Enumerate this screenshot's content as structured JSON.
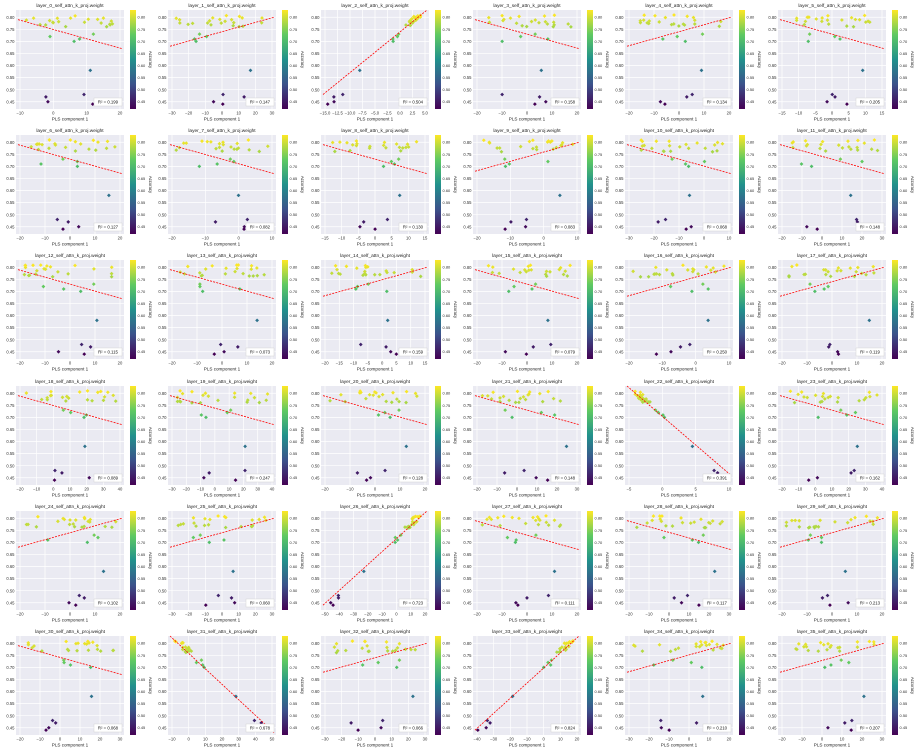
{
  "figure": {
    "xlabel": "PLS component 1",
    "colorbar_label": "Accuracy",
    "colorbar_ticks": [
      "0.80",
      "0.75",
      "0.70",
      "0.65",
      "0.60",
      "0.55",
      "0.50",
      "0.45"
    ],
    "colormap": [
      "#440154",
      "#3b528b",
      "#21918c",
      "#5ec962",
      "#fde725"
    ],
    "regression_color": "#ff0000",
    "panel_bg": "#eaeaf2",
    "grid_color": "#ffffff"
  },
  "chart_data": [
    {
      "type": "scatter",
      "title": "layer_0_self_attn_k_proj.weight",
      "r2": "R² = 0.199",
      "slope": -1,
      "xticks": [
        "−10",
        "0",
        "10",
        "20"
      ]
    },
    {
      "type": "scatter",
      "title": "layer_1_self_attn_k_proj.weight",
      "r2": "R² = 0.147",
      "slope": 1,
      "xticks": [
        "−30",
        "−20",
        "−10",
        "0",
        "10",
        "20",
        "30"
      ]
    },
    {
      "type": "scatter",
      "title": "layer_2_self_attn_k_proj.weight",
      "r2": "R² = 0.504",
      "slope": 2,
      "xticks": [
        "−15.0",
        "−12.5",
        "−10.0",
        "−7.5",
        "−5.0",
        "−2.5",
        "0.0",
        "2.5",
        "5.0"
      ]
    },
    {
      "type": "scatter",
      "title": "layer_3_self_attn_k_proj.weight",
      "r2": "R² = 0.158",
      "slope": -1,
      "xticks": [
        "−20",
        "−10",
        "0",
        "10",
        "20"
      ]
    },
    {
      "type": "scatter",
      "title": "layer_4_self_attn_k_proj.weight",
      "r2": "R² = 0.134",
      "slope": 1,
      "xticks": [
        "−20",
        "−10",
        "0",
        "10",
        "20"
      ]
    },
    {
      "type": "scatter",
      "title": "layer_5_self_attn_k_proj.weight",
      "r2": "R² = 0.205",
      "slope": -1,
      "xticks": [
        "−15",
        "−10",
        "−5",
        "0",
        "5",
        "10",
        "15"
      ]
    },
    {
      "type": "scatter",
      "title": "layer_6_self_attn_k_proj.weight",
      "r2": "R² = 0.127",
      "slope": -1,
      "xticks": [
        "−20",
        "−10",
        "0",
        "10",
        "20"
      ]
    },
    {
      "type": "scatter",
      "title": "layer_7_self_attn_k_proj.weight",
      "r2": "R² = 0.082",
      "slope": -1,
      "xticks": [
        "−20",
        "−10",
        "0",
        "10"
      ]
    },
    {
      "type": "scatter",
      "title": "layer_8_self_attn_k_proj.weight",
      "r2": "R² = 0.130",
      "slope": -1,
      "xticks": [
        "−15",
        "−10",
        "−5",
        "0",
        "5",
        "10",
        "15"
      ]
    },
    {
      "type": "scatter",
      "title": "layer_9_self_attn_k_proj.weight",
      "r2": "R² = 0.083",
      "slope": 1,
      "xticks": [
        "−20",
        "−10",
        "0",
        "10"
      ]
    },
    {
      "type": "scatter",
      "title": "layer_10_self_attn_k_proj.weight",
      "r2": "R² = 0.068",
      "slope": -1,
      "xticks": [
        "−30",
        "−20",
        "−10",
        "0",
        "10"
      ]
    },
    {
      "type": "scatter",
      "title": "layer_11_self_attn_k_proj.weight",
      "r2": "R² = 0.148",
      "slope": -1,
      "xticks": [
        "−20",
        "−10",
        "0",
        "10",
        "20",
        "30"
      ]
    },
    {
      "type": "scatter",
      "title": "layer_12_self_attn_k_proj.weight",
      "r2": "R² = 0.115",
      "slope": -1,
      "xticks": [
        "−20",
        "−10",
        "0",
        "10",
        "20"
      ]
    },
    {
      "type": "scatter",
      "title": "layer_13_self_attn_k_proj.weight",
      "r2": "R² = 0.073",
      "slope": -1,
      "xticks": [
        "−20",
        "−10",
        "0",
        "10",
        "20"
      ]
    },
    {
      "type": "scatter",
      "title": "layer_14_self_attn_k_proj.weight",
      "r2": "R² = 0.159",
      "slope": 1,
      "xticks": [
        "−20",
        "−15",
        "−10",
        "−5",
        "0",
        "5",
        "10",
        "15"
      ]
    },
    {
      "type": "scatter",
      "title": "layer_15_self_attn_k_proj.weight",
      "r2": "R² = 0.079",
      "slope": -1,
      "xticks": [
        "−20",
        "−10",
        "0",
        "10",
        "20"
      ]
    },
    {
      "type": "scatter",
      "title": "layer_16_self_attn_k_proj.weight",
      "r2": "R² = 0.250",
      "slope": 1,
      "xticks": [
        "−20",
        "−10",
        "0",
        "10"
      ]
    },
    {
      "type": "scatter",
      "title": "layer_17_self_attn_k_proj.weight",
      "r2": "R² = 0.119",
      "slope": 1,
      "xticks": [
        "−20",
        "−10",
        "0",
        "10",
        "20"
      ]
    },
    {
      "type": "scatter",
      "title": "layer_18_self_attn_k_proj.weight",
      "r2": "R² = 0.089",
      "slope": -1,
      "xticks": [
        "−20",
        "−10",
        "0",
        "10",
        "20",
        "30",
        "40"
      ]
    },
    {
      "type": "scatter",
      "title": "layer_19_self_attn_k_proj.weight",
      "r2": "R² = 0.247",
      "slope": -1,
      "xticks": [
        "−30",
        "−20",
        "−10",
        "0",
        "10",
        "20",
        "30",
        "40"
      ]
    },
    {
      "type": "scatter",
      "title": "layer_20_self_attn_k_proj.weight",
      "r2": "R² = 0.128",
      "slope": -1,
      "xticks": [
        "−20",
        "−10",
        "0",
        "10",
        "20"
      ]
    },
    {
      "type": "scatter",
      "title": "layer_21_self_attn_k_proj.weight",
      "r2": "R² = 0.148",
      "slope": -1,
      "xticks": [
        "−20",
        "−10",
        "0",
        "10",
        "20",
        "30"
      ]
    },
    {
      "type": "scatter",
      "title": "layer_22_self_attn_k_proj.weight",
      "r2": "R² = 0.391",
      "slope": -2,
      "xticks": [
        "−5",
        "0",
        "5",
        "10"
      ]
    },
    {
      "type": "scatter",
      "title": "layer_23_self_attn_k_proj.weight",
      "r2": "R² = 0.162",
      "slope": -1,
      "xticks": [
        "−20",
        "−10",
        "0",
        "10",
        "20",
        "30",
        "40"
      ]
    },
    {
      "type": "scatter",
      "title": "layer_24_self_attn_k_proj.weight",
      "r2": "R² = 0.102",
      "slope": 1,
      "xticks": [
        "−20",
        "−10",
        "0",
        "10",
        "20"
      ]
    },
    {
      "type": "scatter",
      "title": "layer_25_self_attn_k_proj.weight",
      "r2": "R² = 0.060",
      "slope": 1,
      "xticks": [
        "−30",
        "−20",
        "−10",
        "0",
        "10",
        "20",
        "30"
      ]
    },
    {
      "type": "scatter",
      "title": "layer_26_self_attn_k_proj.weight",
      "r2": "R² = 0.723",
      "slope": 3,
      "xticks": [
        "−50",
        "−40",
        "−30",
        "−20",
        "−10",
        "0",
        "10",
        "20"
      ]
    },
    {
      "type": "scatter",
      "title": "layer_27_self_attn_k_proj.weight",
      "r2": "R² = 0.111",
      "slope": -1,
      "xticks": [
        "−20",
        "−10",
        "0",
        "10",
        "20"
      ]
    },
    {
      "type": "scatter",
      "title": "layer_28_self_attn_k_proj.weight",
      "r2": "R² = 0.117",
      "slope": -1,
      "xticks": [
        "−20",
        "−10",
        "0",
        "10",
        "20",
        "30"
      ]
    },
    {
      "type": "scatter",
      "title": "layer_29_self_attn_k_proj.weight",
      "r2": "R² = 0.213",
      "slope": 1,
      "xticks": [
        "−20",
        "−10",
        "0",
        "10",
        "20"
      ]
    },
    {
      "type": "scatter",
      "title": "layer_30_self_attn_k_proj.weight",
      "r2": "R² = 0.068",
      "slope": -1,
      "xticks": [
        "−20",
        "−10",
        "0",
        "10",
        "20",
        "30"
      ]
    },
    {
      "type": "scatter",
      "title": "layer_31_self_attn_k_proj.weight",
      "r2": "R² = 0.678",
      "slope": -3,
      "xticks": [
        "−10",
        "0",
        "10",
        "20",
        "30",
        "40",
        "50"
      ]
    },
    {
      "type": "scatter",
      "title": "layer_32_self_attn_k_proj.weight",
      "r2": "R² = 0.066",
      "slope": 1,
      "xticks": [
        "−30",
        "−20",
        "−10",
        "0",
        "10",
        "20",
        "30"
      ]
    },
    {
      "type": "scatter",
      "title": "layer_33_self_attn_k_proj.weight",
      "r2": "R² = 0.824",
      "slope": 3,
      "xticks": [
        "−40",
        "−30",
        "−20",
        "−10",
        "0",
        "10",
        "20"
      ]
    },
    {
      "type": "scatter",
      "title": "layer_34_self_attn_k_proj.weight",
      "r2": "R² = 0.210",
      "slope": 1,
      "xticks": [
        "−30",
        "−20",
        "−10",
        "0",
        "10",
        "20"
      ]
    },
    {
      "type": "scatter",
      "title": "layer_35_self_attn_k_proj.weight",
      "r2": "R² = 0.207",
      "slope": 1,
      "xticks": [
        "−20",
        "−10",
        "0",
        "10",
        "20",
        "30"
      ]
    }
  ]
}
